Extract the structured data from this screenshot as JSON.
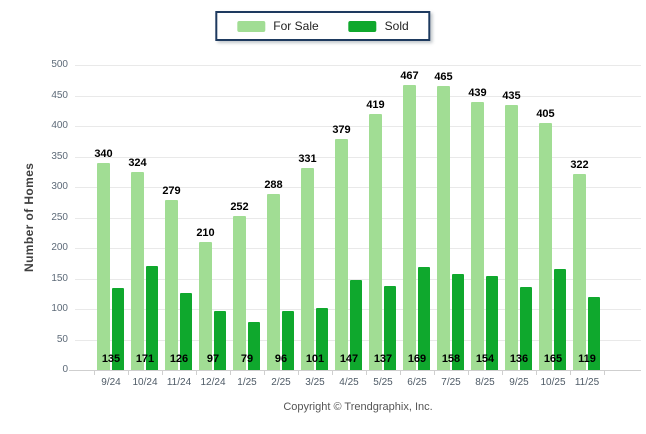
{
  "legend": {
    "items": [
      {
        "label": "For Sale",
        "color": "#A1DD94"
      },
      {
        "label": "Sold",
        "color": "#0FA82D"
      }
    ]
  },
  "footer": {
    "copyright": "Copyright © Trendgraphix, Inc."
  },
  "chart_data": {
    "type": "bar",
    "title": "",
    "xlabel": "",
    "ylabel": "Number of Homes",
    "ylim": [
      0,
      500
    ],
    "yticks": [
      0,
      50,
      100,
      150,
      200,
      250,
      300,
      350,
      400,
      450,
      500
    ],
    "grid": true,
    "legend_position": "top-center",
    "categories": [
      "9/24",
      "10/24",
      "11/24",
      "12/24",
      "1/25",
      "2/25",
      "3/25",
      "4/25",
      "5/25",
      "6/25",
      "7/25",
      "8/25",
      "9/25",
      "10/25",
      "11/25"
    ],
    "series": [
      {
        "name": "For Sale",
        "color": "#A1DD94",
        "label_position": "above-bar",
        "values": [
          340,
          324,
          279,
          210,
          252,
          288,
          331,
          379,
          419,
          467,
          465,
          439,
          435,
          405,
          322
        ]
      },
      {
        "name": "Sold",
        "color": "#0FA82D",
        "label_position": "axis-bottom",
        "values": [
          135,
          171,
          126,
          97,
          79,
          96,
          101,
          147,
          137,
          169,
          158,
          154,
          136,
          165,
          119
        ]
      }
    ]
  }
}
